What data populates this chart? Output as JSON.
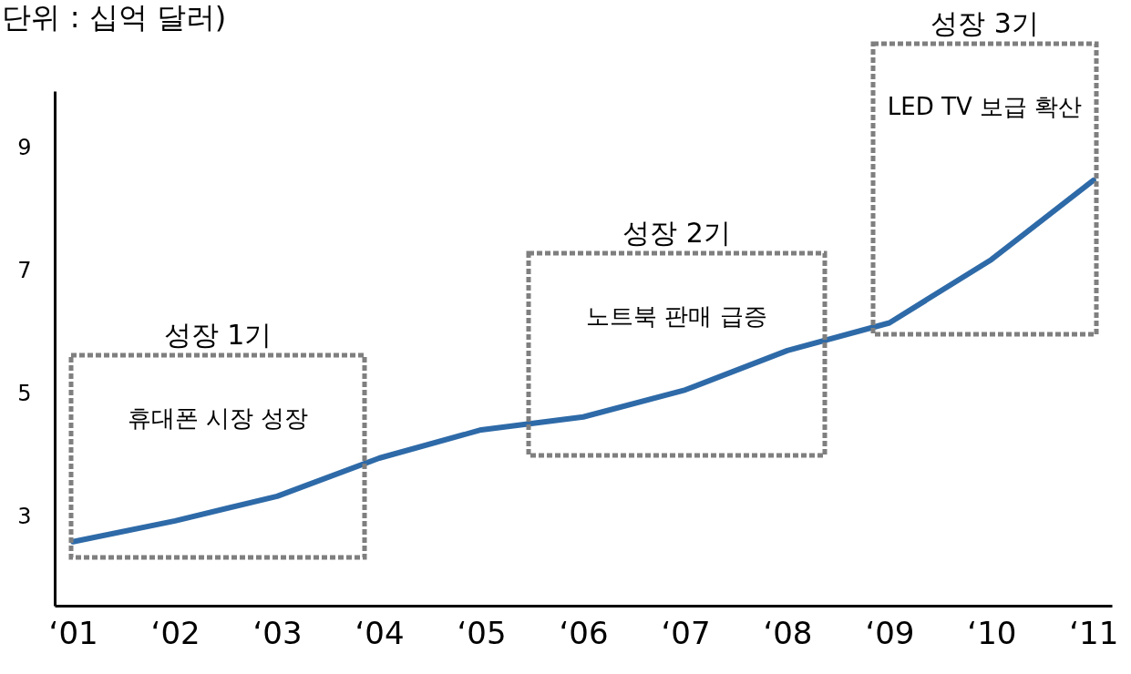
{
  "chart_data": {
    "type": "line",
    "title": "(단위 : 십억 달러)",
    "categories": [
      "‘01",
      "‘02",
      "‘03",
      "‘04",
      "‘05",
      "‘06",
      "‘07",
      "‘08",
      "‘09",
      "‘10",
      "‘11"
    ],
    "series": [
      {
        "color": "#2e6aa8",
        "values": [
          2.6,
          2.94,
          3.34,
          3.96,
          4.42,
          4.63,
          5.07,
          5.71,
          6.16,
          7.19,
          8.48
        ]
      }
    ],
    "ylim": [
      1.56,
      9.93
    ],
    "yticks": [
      3,
      5,
      7,
      9
    ],
    "grid": false,
    "marker": "none",
    "line_style": "solid",
    "annotations": [
      "성장 1기",
      "휴대폰 시장 성장",
      "성장 2기",
      "노트북 판매 급증",
      "성장 3기",
      "LED TV 보급 확산"
    ]
  }
}
